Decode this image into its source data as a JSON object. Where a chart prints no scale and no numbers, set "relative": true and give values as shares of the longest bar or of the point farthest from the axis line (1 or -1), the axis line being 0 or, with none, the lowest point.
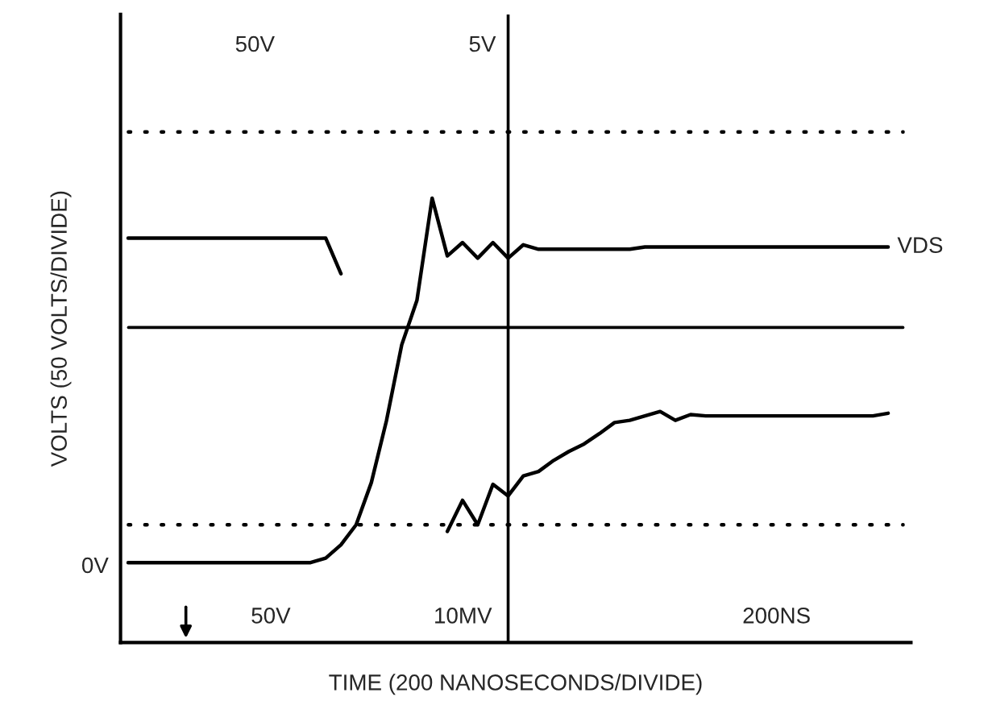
{
  "chart_data": {
    "type": "line",
    "relative": true,
    "xlabel": "TIME (200 NANOSECONDS/DIVIDE)",
    "ylabel": "VOLTS (50 VOLTS/DIVIDE)",
    "categories": [
      null,
      null,
      null,
      null,
      null,
      null,
      null,
      null,
      null,
      null,
      null,
      null,
      null,
      null,
      null,
      null,
      null,
      null,
      null,
      null,
      null,
      null,
      null,
      null,
      null,
      null,
      null,
      null,
      null,
      null,
      null,
      null,
      null,
      null,
      null,
      null,
      null,
      null,
      null,
      null,
      null,
      null,
      null,
      null,
      null,
      null,
      null,
      null,
      null,
      null,
      null
    ],
    "series": [
      {
        "color": "#000000",
        "values": [
          0.91,
          0.91,
          0.91,
          0.91,
          0.91,
          0.91,
          0.91,
          0.91,
          0.91,
          0.91,
          0.91,
          0.91,
          0.91,
          0.91,
          0.83,
          null,
          null,
          null,
          null,
          null,
          null,
          null,
          null,
          null,
          null,
          null,
          null,
          null,
          null,
          null,
          null,
          null,
          null,
          null,
          null,
          null,
          null,
          null,
          null,
          null,
          null,
          null,
          null,
          null,
          null,
          null,
          null,
          null,
          null,
          null,
          null
        ]
      },
      {
        "name": "VDS",
        "color": "#000000",
        "values": [
          0.18,
          0.18,
          0.18,
          0.18,
          0.18,
          0.18,
          0.18,
          0.18,
          0.18,
          0.18,
          0.18,
          0.18,
          0.18,
          0.19,
          0.22,
          0.265,
          0.36,
          0.5,
          0.67,
          0.77,
          1.0,
          0.87,
          0.9,
          0.865,
          0.9,
          0.865,
          0.895,
          0.885,
          0.885,
          0.885,
          0.885,
          0.885,
          0.885,
          0.885,
          0.89,
          0.89,
          0.89,
          0.89,
          0.89,
          0.89,
          0.89,
          0.89,
          0.89,
          0.89,
          0.89,
          0.89,
          0.89,
          0.89,
          0.89,
          0.89,
          0.89
        ]
      },
      {
        "color": "#000000",
        "values": [
          null,
          null,
          null,
          null,
          null,
          null,
          null,
          null,
          null,
          null,
          null,
          null,
          null,
          null,
          null,
          null,
          null,
          null,
          null,
          null,
          null,
          0.25,
          0.32,
          0.265,
          0.356,
          0.33,
          0.375,
          0.385,
          0.41,
          0.43,
          0.447,
          0.47,
          0.495,
          0.5,
          0.51,
          0.52,
          0.5,
          0.513,
          0.51,
          0.51,
          0.51,
          0.51,
          0.51,
          0.51,
          0.51,
          0.51,
          0.51,
          0.51,
          0.51,
          0.51,
          0.516
        ]
      }
    ],
    "ref_lines": [
      {
        "axis": "y",
        "value": 1.149,
        "line_style": "dotted"
      },
      {
        "axis": "y",
        "value": 0.265,
        "line_style": "dotted"
      },
      {
        "axis": "y",
        "value": 0.709,
        "line_style": "solid"
      }
    ],
    "annotations": [
      "50V",
      "5V",
      "0V",
      "50V",
      "10MV",
      "200NS"
    ],
    "tick_labels": false,
    "grid": false
  }
}
